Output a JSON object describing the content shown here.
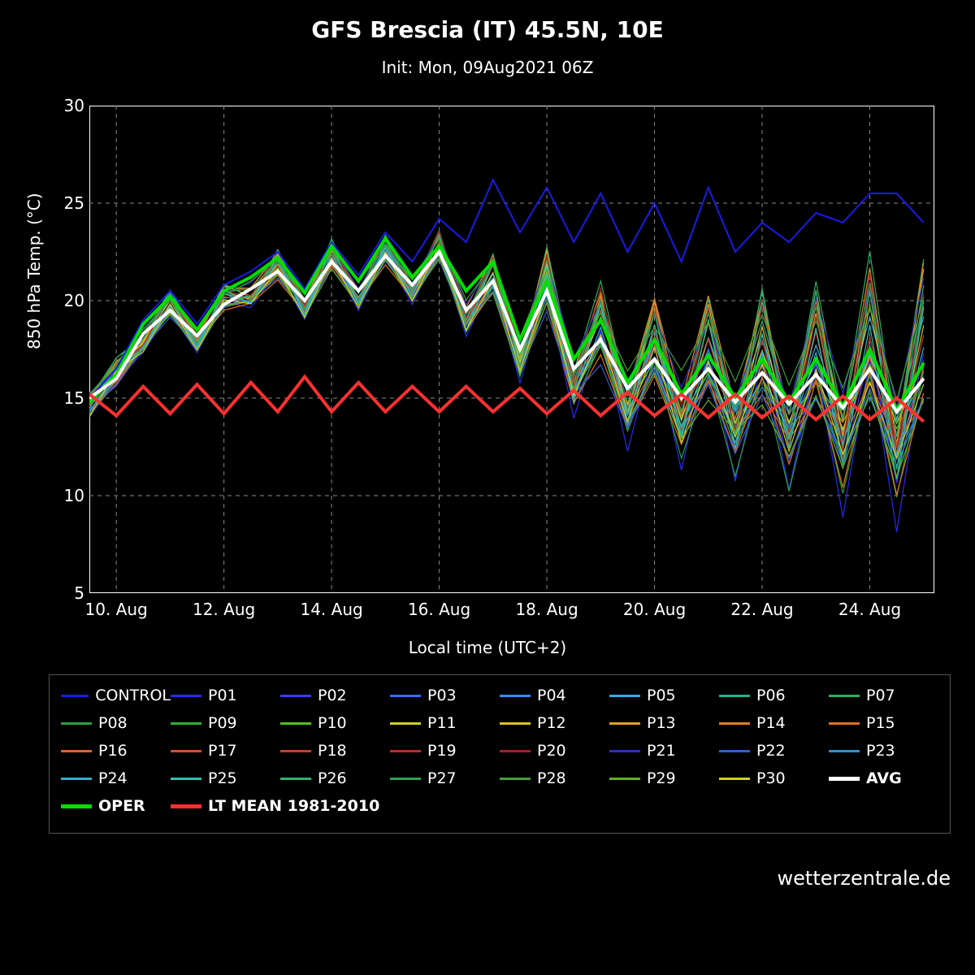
{
  "title": "GFS Brescia (IT) 45.5N, 10E",
  "subtitle": "Init: Mon, 09Aug2021 06Z",
  "ylabel": "850 hPa Temp. (°C)",
  "xlabel": "Local time (UTC+2)",
  "attribution": "wetterzentrale.de",
  "chart": {
    "type": "line",
    "background": "#000000",
    "border_color": "#ffffff",
    "grid_color": "#888888",
    "grid_dash": "5,5",
    "font_color": "#ffffff",
    "title_fontsize": 28,
    "subtitle_fontsize": 20,
    "label_fontsize": 20,
    "tick_fontsize": 20,
    "xlim": [
      9.5,
      25.2
    ],
    "xticks": [
      10,
      12,
      14,
      16,
      18,
      20,
      22,
      24
    ],
    "xtick_labels": [
      "10. Aug",
      "12. Aug",
      "14. Aug",
      "16. Aug",
      "18. Aug",
      "20. Aug",
      "22. Aug",
      "24. Aug"
    ],
    "ylim": [
      5,
      30
    ],
    "yticks": [
      5,
      10,
      15,
      20,
      25,
      30
    ],
    "ytick_labels": [
      "5",
      "10",
      "15",
      "20",
      "25",
      "30"
    ],
    "special": {
      "avg": {
        "label": "AVG",
        "color": "#ffffff",
        "width": 4
      },
      "oper": {
        "label": "OPER",
        "color": "#00e000",
        "width": 4
      },
      "ltmean": {
        "label": "LT MEAN 1981-2010",
        "color": "#ff3030",
        "width": 4
      },
      "control": {
        "label": "CONTROL",
        "color": "#1a1ae6",
        "width": 2
      }
    },
    "members": [
      {
        "id": "P01",
        "color": "#2a2af0"
      },
      {
        "id": "P02",
        "color": "#3a3af5"
      },
      {
        "id": "P03",
        "color": "#3a6af5"
      },
      {
        "id": "P04",
        "color": "#3a8af5"
      },
      {
        "id": "P05",
        "color": "#3aaae0"
      },
      {
        "id": "P06",
        "color": "#2ab090"
      },
      {
        "id": "P07",
        "color": "#2ab060"
      },
      {
        "id": "P08",
        "color": "#2aa040"
      },
      {
        "id": "P09",
        "color": "#30b030"
      },
      {
        "id": "P10",
        "color": "#50c020"
      },
      {
        "id": "P11",
        "color": "#d0d020"
      },
      {
        "id": "P12",
        "color": "#e0c020"
      },
      {
        "id": "P13",
        "color": "#e0a020"
      },
      {
        "id": "P14",
        "color": "#e08020"
      },
      {
        "id": "P15",
        "color": "#e07020"
      },
      {
        "id": "P16",
        "color": "#e06030"
      },
      {
        "id": "P17",
        "color": "#d05030"
      },
      {
        "id": "P18",
        "color": "#c04030"
      },
      {
        "id": "P19",
        "color": "#b03030"
      },
      {
        "id": "P20",
        "color": "#a02030"
      },
      {
        "id": "P21",
        "color": "#3030c0"
      },
      {
        "id": "P22",
        "color": "#3060d0"
      },
      {
        "id": "P23",
        "color": "#3090d0"
      },
      {
        "id": "P24",
        "color": "#30b0d0"
      },
      {
        "id": "P25",
        "color": "#30c0b0"
      },
      {
        "id": "P26",
        "color": "#30b070"
      },
      {
        "id": "P27",
        "color": "#30a050"
      },
      {
        "id": "P28",
        "color": "#40a030"
      },
      {
        "id": "P29",
        "color": "#60b020"
      },
      {
        "id": "P30",
        "color": "#d0d020"
      }
    ],
    "x": [
      9.5,
      10,
      10.5,
      11,
      11.5,
      12,
      12.5,
      13,
      13.5,
      14,
      14.5,
      15,
      15.5,
      16,
      16.5,
      17,
      17.5,
      18,
      18.5,
      19,
      19.5,
      20,
      20.5,
      21,
      21.5,
      22,
      22.5,
      23,
      23.5,
      24,
      24.5,
      25
    ],
    "series_ltmean": [
      15.2,
      14.1,
      15.6,
      14.2,
      15.7,
      14.2,
      15.8,
      14.3,
      16.1,
      14.3,
      15.8,
      14.3,
      15.6,
      14.3,
      15.6,
      14.3,
      15.5,
      14.2,
      15.4,
      14.1,
      15.3,
      14.1,
      15.2,
      14.0,
      15.2,
      14.0,
      15.1,
      13.9,
      15.1,
      13.9,
      15.0,
      13.8
    ],
    "series_avg": [
      15.0,
      16.0,
      18.3,
      19.5,
      18.2,
      19.8,
      20.6,
      21.5,
      20.0,
      22.0,
      20.5,
      22.3,
      20.8,
      22.5,
      19.5,
      21.0,
      17.5,
      20.5,
      16.5,
      18.0,
      15.5,
      17.0,
      15.0,
      16.5,
      14.8,
      16.3,
      14.7,
      16.2,
      14.5,
      16.5,
      14.3,
      16.0
    ],
    "series_oper": [
      14.8,
      16.2,
      18.8,
      20.2,
      18.5,
      20.5,
      21.2,
      22.2,
      20.4,
      22.8,
      21.0,
      23.2,
      21.2,
      22.8,
      20.5,
      22.0,
      18.0,
      21.0,
      17.0,
      19.0,
      15.8,
      18.0,
      15.2,
      17.2,
      15.0,
      17.0,
      14.8,
      17.0,
      14.6,
      17.5,
      14.4,
      16.8
    ],
    "series_control": [
      15.0,
      16.5,
      19.0,
      20.5,
      18.8,
      20.8,
      21.5,
      22.5,
      20.6,
      23.0,
      21.3,
      23.5,
      22.0,
      24.2,
      23.0,
      26.2,
      23.5,
      25.8,
      23.0,
      25.5,
      22.5,
      25.0,
      22.0,
      25.8,
      22.5,
      24.0,
      23.0,
      24.5,
      24.0,
      25.5,
      25.5,
      24.0
    ],
    "member_line_width": 1.2,
    "member_noise_amp": 2.5
  },
  "legend_order": [
    "CONTROL",
    "P01",
    "P02",
    "P03",
    "P04",
    "P05",
    "P06",
    "P07",
    "P08",
    "P09",
    "P10",
    "P11",
    "P12",
    "P13",
    "P14",
    "P15",
    "P16",
    "P17",
    "P18",
    "P19",
    "P20",
    "P21",
    "P22",
    "P23",
    "P24",
    "P25",
    "P26",
    "P27",
    "P28",
    "P29",
    "P30",
    "AVG",
    "OPER",
    "LT MEAN 1981-2010"
  ]
}
